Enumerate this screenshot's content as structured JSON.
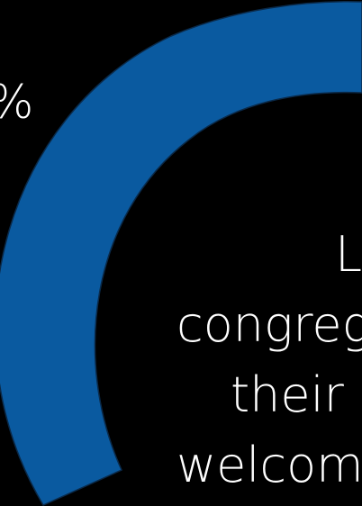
{
  "stat": {
    "percent_text": "%",
    "gauge_color": "#0a5aa0",
    "background_color": "#000000"
  },
  "caption": {
    "line1": "L",
    "line2": "congreg",
    "line3": "their c",
    "line4": "welcom"
  }
}
